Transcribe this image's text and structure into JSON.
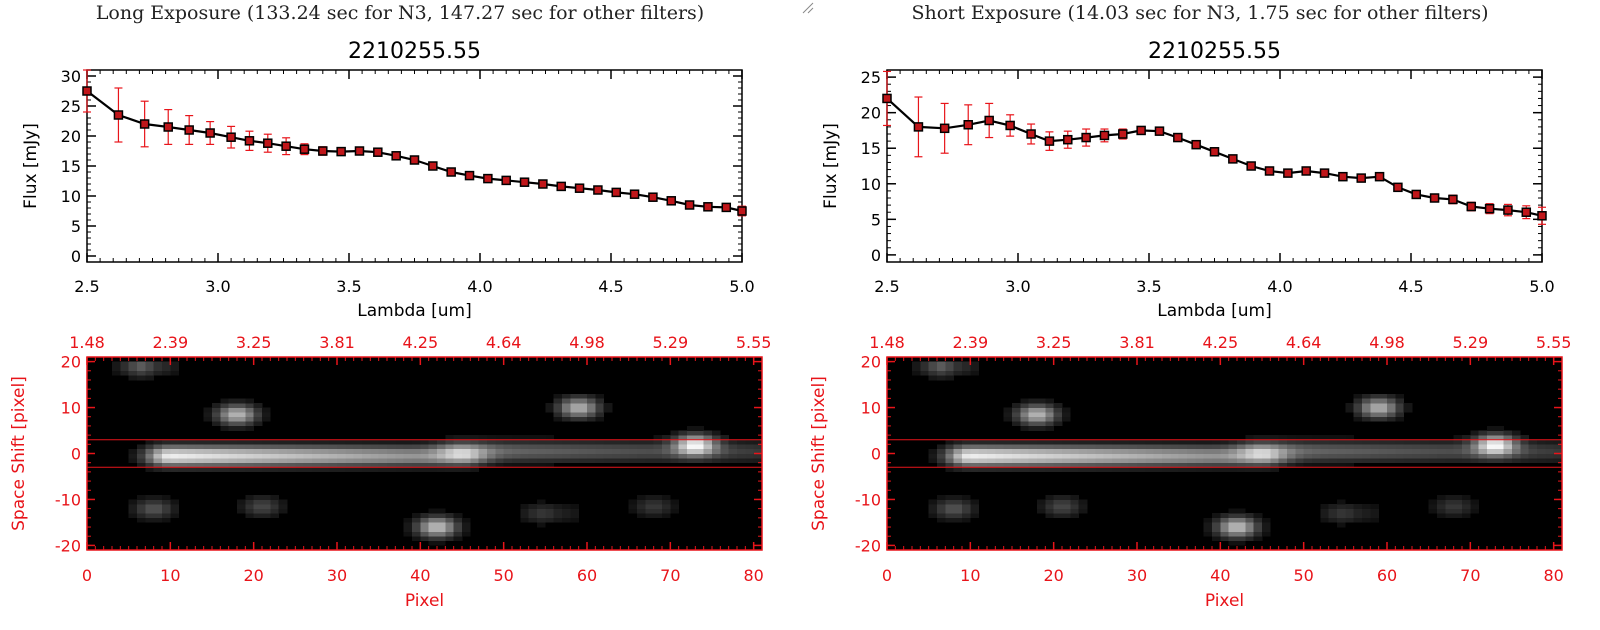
{
  "colors": {
    "axis": "#000000",
    "accent": "#e8141a",
    "marker": "#c0161a",
    "errorbar": "#e8141a",
    "heatmap_bg": "#000000"
  },
  "panels": [
    {
      "title": "Long Exposure (133.24 sec for N3, 147.27 sec for other filters)",
      "chart_data": [
        {
          "type": "line",
          "title": "2210255.55",
          "xlabel": "Lambda [um]",
          "ylabel": "Flux [mJy]",
          "xlim": [
            2.5,
            5.0
          ],
          "ylim": [
            -1,
            31
          ],
          "xticks": [
            2.5,
            3.0,
            3.5,
            4.0,
            4.5,
            5.0
          ],
          "xtick_labels": [
            "2.5",
            "3.0",
            "3.5",
            "4.0",
            "4.5",
            "5.0"
          ],
          "yticks": [
            0,
            5,
            10,
            15,
            20,
            25,
            30
          ],
          "ytick_labels": [
            "0",
            "5",
            "10",
            "15",
            "20",
            "25",
            "30"
          ],
          "grid": false,
          "x": [
            2.5,
            2.62,
            2.72,
            2.81,
            2.89,
            2.97,
            3.05,
            3.12,
            3.19,
            3.26,
            3.33,
            3.4,
            3.47,
            3.54,
            3.61,
            3.68,
            3.75,
            3.82,
            3.89,
            3.96,
            4.03,
            4.1,
            4.17,
            4.24,
            4.31,
            4.38,
            4.45,
            4.52,
            4.59,
            4.66,
            4.73,
            4.8,
            4.87,
            4.94,
            5.0
          ],
          "y": [
            27.5,
            23.5,
            22.0,
            21.5,
            21.0,
            20.5,
            19.8,
            19.2,
            18.8,
            18.3,
            17.8,
            17.5,
            17.4,
            17.5,
            17.3,
            16.7,
            16.0,
            15.0,
            14.0,
            13.4,
            12.9,
            12.6,
            12.3,
            12.0,
            11.6,
            11.3,
            11.0,
            10.6,
            10.3,
            9.8,
            9.2,
            8.5,
            8.2,
            8.1,
            7.5
          ],
          "yerr": [
            3.5,
            4.5,
            3.8,
            2.9,
            2.4,
            1.9,
            1.8,
            1.6,
            1.5,
            1.4,
            0.9,
            0.7,
            0.6,
            0.6,
            0.6,
            0.6,
            0.5,
            0.5,
            0.5,
            0.5,
            0.5,
            0.5,
            0.5,
            0.5,
            0.5,
            0.5,
            0.5,
            0.5,
            0.5,
            0.5,
            0.5,
            0.5,
            0.6,
            0.6,
            0.8
          ]
        },
        {
          "type": "heatmap",
          "xlabel": "Pixel",
          "ylabel": "Space Shift [pixel]",
          "xlim": [
            0,
            81
          ],
          "ylim": [
            -21,
            21
          ],
          "xticks": [
            0,
            10,
            20,
            30,
            40,
            50,
            60,
            70,
            80
          ],
          "xtick_labels": [
            "0",
            "10",
            "20",
            "30",
            "40",
            "50",
            "60",
            "70",
            "80"
          ],
          "yticks": [
            -20,
            -10,
            0,
            10,
            20
          ],
          "ytick_labels": [
            "-20",
            "-10",
            "0",
            "10",
            "20"
          ],
          "top_axis_ticks": [
            0,
            10,
            20,
            30,
            40,
            50,
            60,
            70,
            80
          ],
          "top_axis_labels": [
            "1.48",
            "2.39",
            "3.25",
            "3.81",
            "4.25",
            "4.64",
            "4.98",
            "5.29",
            "5.55"
          ],
          "extraction_window": [
            -3,
            3
          ],
          "blobs": [
            {
              "x": [
                10,
                45
              ],
              "y": 0.5,
              "peak": 0.93
            },
            {
              "x": [
                45,
                80
              ],
              "y": 1.5,
              "peak": 0.42
            },
            {
              "x": [
                18,
                18
              ],
              "y": 9.5,
              "peak": 0.72
            },
            {
              "x": [
                59,
                59
              ],
              "y": 11,
              "peak": 0.7
            },
            {
              "x": [
                73,
                73
              ],
              "y": 3,
              "peak": 0.82
            },
            {
              "x": [
                8,
                8
              ],
              "y": -11,
              "peak": 0.33
            },
            {
              "x": [
                21,
                21
              ],
              "y": -10.5,
              "peak": 0.28
            },
            {
              "x": [
                7,
                8
              ],
              "y": 20,
              "peak": 0.38
            },
            {
              "x": [
                42,
                42
              ],
              "y": -15,
              "peak": 0.75
            },
            {
              "x": [
                55,
                57
              ],
              "y": -12,
              "peak": 0.22
            },
            {
              "x": [
                68,
                68
              ],
              "y": -10.5,
              "peak": 0.22
            }
          ]
        }
      ]
    },
    {
      "title": "Short Exposure (14.03 sec for N3, 1.75 sec for other filters)",
      "chart_data": [
        {
          "type": "line",
          "title": "2210255.55",
          "xlabel": "Lambda [um]",
          "ylabel": "Flux [mJy]",
          "xlim": [
            2.5,
            5.0
          ],
          "ylim": [
            -1,
            26
          ],
          "xticks": [
            2.5,
            3.0,
            3.5,
            4.0,
            4.5,
            5.0
          ],
          "xtick_labels": [
            "2.5",
            "3.0",
            "3.5",
            "4.0",
            "4.5",
            "5.0"
          ],
          "yticks": [
            0,
            5,
            10,
            15,
            20,
            25
          ],
          "ytick_labels": [
            "0",
            "5",
            "10",
            "15",
            "20",
            "25"
          ],
          "grid": false,
          "x": [
            2.5,
            2.62,
            2.72,
            2.81,
            2.89,
            2.97,
            3.05,
            3.12,
            3.19,
            3.26,
            3.33,
            3.4,
            3.47,
            3.54,
            3.61,
            3.68,
            3.75,
            3.82,
            3.89,
            3.96,
            4.03,
            4.1,
            4.17,
            4.24,
            4.31,
            4.38,
            4.45,
            4.52,
            4.59,
            4.66,
            4.73,
            4.8,
            4.87,
            4.94,
            5.0
          ],
          "y": [
            22.0,
            18.0,
            17.8,
            18.3,
            18.9,
            18.2,
            17.0,
            16.0,
            16.2,
            16.5,
            16.8,
            17.0,
            17.5,
            17.4,
            16.5,
            15.5,
            14.5,
            13.5,
            12.5,
            11.8,
            11.5,
            11.8,
            11.5,
            11.0,
            10.8,
            11.0,
            9.5,
            8.5,
            8.0,
            7.8,
            6.8,
            6.5,
            6.3,
            6.0,
            5.5
          ],
          "yerr": [
            3.8,
            4.2,
            3.5,
            2.8,
            2.4,
            1.5,
            1.4,
            1.3,
            1.2,
            1.2,
            0.9,
            0.7,
            0.5,
            0.5,
            0.5,
            0.5,
            0.5,
            0.5,
            0.5,
            0.5,
            0.5,
            0.5,
            0.5,
            0.5,
            0.5,
            0.5,
            0.5,
            0.5,
            0.5,
            0.6,
            0.6,
            0.7,
            0.8,
            0.9,
            1.2
          ]
        },
        {
          "type": "heatmap",
          "xlabel": "Pixel",
          "ylabel": "Space Shift [pixel]",
          "xlim": [
            0,
            81
          ],
          "ylim": [
            -21,
            21
          ],
          "xticks": [
            0,
            10,
            20,
            30,
            40,
            50,
            60,
            70,
            80
          ],
          "xtick_labels": [
            "0",
            "10",
            "20",
            "30",
            "40",
            "50",
            "60",
            "70",
            "80"
          ],
          "yticks": [
            -20,
            -10,
            0,
            10,
            20
          ],
          "ytick_labels": [
            "-20",
            "-10",
            "0",
            "10",
            "20"
          ],
          "top_axis_ticks": [
            0,
            10,
            20,
            30,
            40,
            50,
            60,
            70,
            80
          ],
          "top_axis_labels": [
            "1.48",
            "2.39",
            "3.25",
            "3.81",
            "4.25",
            "4.64",
            "4.98",
            "5.29",
            "5.55"
          ],
          "extraction_window": [
            -3,
            3
          ],
          "blobs": [
            {
              "x": [
                10,
                45
              ],
              "y": 0.5,
              "peak": 0.93
            },
            {
              "x": [
                45,
                80
              ],
              "y": 1.5,
              "peak": 0.42
            },
            {
              "x": [
                18,
                18
              ],
              "y": 9.5,
              "peak": 0.72
            },
            {
              "x": [
                59,
                59
              ],
              "y": 11,
              "peak": 0.7
            },
            {
              "x": [
                73,
                73
              ],
              "y": 3,
              "peak": 0.82
            },
            {
              "x": [
                8,
                8
              ],
              "y": -11,
              "peak": 0.33
            },
            {
              "x": [
                21,
                21
              ],
              "y": -10.5,
              "peak": 0.28
            },
            {
              "x": [
                7,
                8
              ],
              "y": 20,
              "peak": 0.38
            },
            {
              "x": [
                42,
                42
              ],
              "y": -15,
              "peak": 0.75
            },
            {
              "x": [
                55,
                57
              ],
              "y": -12,
              "peak": 0.22
            },
            {
              "x": [
                68,
                68
              ],
              "y": -10.5,
              "peak": 0.22
            }
          ]
        }
      ]
    }
  ]
}
